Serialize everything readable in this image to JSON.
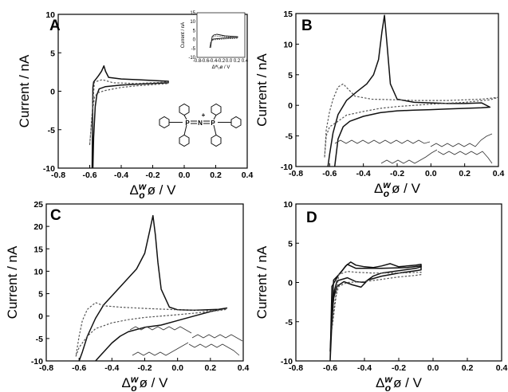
{
  "figure": {
    "ylabel": "Current / nA",
    "xlabel_main": "Δ",
    "xlabel_super": "w",
    "xlabel_sub": "o",
    "xlabel_tail": "ø / V",
    "solid_color": "#111111",
    "dotted_color": "#555555"
  },
  "inset": {
    "ylabel": "Current / nA",
    "xlabel": "Δᵂₒø / V",
    "xticks": [
      "-0.8",
      "-0.6",
      "-0.4",
      "-0.2",
      "0.0",
      "0.2",
      "0.4"
    ],
    "yticks": [
      "15",
      "10",
      "5",
      "0",
      "-5",
      "-10"
    ]
  },
  "molecule": {
    "p_left": "P",
    "n": "N",
    "p_right": "P",
    "charge": "+"
  },
  "chart_data": [
    {
      "panel": "A",
      "type": "line",
      "xlim": [
        -0.8,
        0.4
      ],
      "ylim": [
        -10,
        10
      ],
      "xticks": [
        "-0.8",
        "-0.6",
        "-0.4",
        "-0.2",
        "0.0",
        "0.2",
        "0.4"
      ],
      "yticks": [
        "10",
        "5",
        "0",
        "-5",
        "-10"
      ],
      "series": [
        {
          "style": "solid",
          "points": [
            [
              -0.58,
              -10
            ],
            [
              -0.575,
              -6
            ],
            [
              -0.565,
              -2
            ],
            [
              -0.555,
              -0.5
            ],
            [
              -0.54,
              0.3
            ],
            [
              -0.5,
              0.6
            ],
            [
              -0.4,
              0.8
            ],
            [
              -0.3,
              0.9
            ],
            [
              -0.2,
              1.0
            ],
            [
              -0.1,
              1.1
            ],
            [
              -0.1,
              1.3
            ],
            [
              -0.2,
              1.4
            ],
            [
              -0.3,
              1.5
            ],
            [
              -0.4,
              1.6
            ],
            [
              -0.48,
              1.8
            ],
            [
              -0.5,
              2.6
            ],
            [
              -0.51,
              3.3
            ],
            [
              -0.525,
              2.6
            ],
            [
              -0.545,
              2.0
            ],
            [
              -0.56,
              1.6
            ],
            [
              -0.575,
              1.2
            ],
            [
              -0.58,
              0.5
            ],
            [
              -0.585,
              -10
            ]
          ]
        },
        {
          "style": "dotted",
          "points": [
            [
              -0.6,
              -7
            ],
            [
              -0.585,
              -3
            ],
            [
              -0.57,
              -0.8
            ],
            [
              -0.55,
              -0.2
            ],
            [
              -0.5,
              0.1
            ],
            [
              -0.4,
              0.5
            ],
            [
              -0.3,
              0.7
            ],
            [
              -0.2,
              0.85
            ],
            [
              -0.1,
              1.0
            ],
            [
              -0.1,
              1.2
            ],
            [
              -0.3,
              1.0
            ],
            [
              -0.45,
              1.1
            ],
            [
              -0.52,
              1.5
            ],
            [
              -0.57,
              1.2
            ],
            [
              -0.6,
              -7
            ]
          ]
        }
      ]
    },
    {
      "panel": "B",
      "type": "line",
      "xlim": [
        -0.8,
        0.4
      ],
      "ylim": [
        -10,
        15
      ],
      "xticks": [
        "-0.8",
        "-0.6",
        "-0.4",
        "-0.2",
        "0.0",
        "0.2",
        "0.4"
      ],
      "yticks": [
        "15",
        "10",
        "5",
        "0",
        "-5",
        "-10"
      ],
      "series": [
        {
          "style": "solid",
          "points": [
            [
              -0.57,
              -10
            ],
            [
              -0.55,
              -5.5
            ],
            [
              -0.52,
              -3.5
            ],
            [
              -0.48,
              -2.6
            ],
            [
              -0.4,
              -1.8
            ],
            [
              -0.3,
              -1.2
            ],
            [
              -0.2,
              -0.9
            ],
            [
              -0.1,
              -0.8
            ],
            [
              0.0,
              -0.7
            ],
            [
              0.1,
              -0.6
            ],
            [
              0.2,
              -0.5
            ],
            [
              0.3,
              -0.4
            ],
            [
              0.35,
              -0.3
            ],
            [
              0.3,
              0.4
            ],
            [
              0.2,
              0.3
            ],
            [
              0.1,
              0.3
            ],
            [
              0.0,
              0.4
            ],
            [
              -0.1,
              0.5
            ],
            [
              -0.2,
              1.0
            ],
            [
              -0.24,
              3.5
            ],
            [
              -0.26,
              10.0
            ],
            [
              -0.275,
              14.7
            ],
            [
              -0.29,
              12.0
            ],
            [
              -0.31,
              7.5
            ],
            [
              -0.34,
              5.0
            ],
            [
              -0.38,
              3.5
            ],
            [
              -0.44,
              2.2
            ],
            [
              -0.5,
              0.8
            ],
            [
              -0.55,
              -1.5
            ],
            [
              -0.58,
              -4.5
            ],
            [
              -0.6,
              -8.0
            ],
            [
              -0.61,
              -10
            ]
          ]
        },
        {
          "style": "dotted",
          "points": [
            [
              -0.63,
              -8.5
            ],
            [
              -0.62,
              -5.0
            ],
            [
              -0.6,
              -3.5
            ],
            [
              -0.56,
              -2.8
            ],
            [
              -0.5,
              -1.6
            ],
            [
              -0.4,
              -1.0
            ],
            [
              -0.3,
              -0.5
            ],
            [
              -0.2,
              -0.2
            ],
            [
              0.0,
              0.2
            ],
            [
              0.2,
              0.5
            ],
            [
              0.35,
              0.9
            ],
            [
              0.4,
              1.3
            ],
            [
              0.3,
              1.0
            ],
            [
              0.1,
              0.8
            ],
            [
              -0.1,
              0.8
            ],
            [
              -0.2,
              0.9
            ],
            [
              -0.35,
              1.0
            ],
            [
              -0.45,
              1.5
            ],
            [
              -0.52,
              3.5
            ],
            [
              -0.55,
              3.0
            ],
            [
              -0.58,
              1.0
            ],
            [
              -0.6,
              -1.0
            ],
            [
              -0.62,
              -4.0
            ],
            [
              -0.63,
              -8.5
            ]
          ]
        }
      ]
    },
    {
      "panel": "C",
      "type": "line",
      "xlim": [
        -0.8,
        0.4
      ],
      "ylim": [
        -10,
        25
      ],
      "xticks": [
        "-0.8",
        "-0.6",
        "-0.4",
        "-0.2",
        "0.0",
        "0.2",
        "0.4"
      ],
      "yticks": [
        "25",
        "20",
        "15",
        "10",
        "5",
        "0",
        "-5",
        "-10"
      ],
      "series": [
        {
          "style": "solid",
          "points": [
            [
              -0.5,
              -10
            ],
            [
              -0.45,
              -8.0
            ],
            [
              -0.4,
              -6.0
            ],
            [
              -0.35,
              -4.5
            ],
            [
              -0.3,
              -3.5
            ],
            [
              -0.2,
              -2.5
            ],
            [
              -0.1,
              -2.0
            ],
            [
              0.0,
              -1.0
            ],
            [
              0.1,
              0.0
            ],
            [
              0.2,
              1.0
            ],
            [
              0.3,
              1.8
            ],
            [
              0.25,
              1.5
            ],
            [
              0.1,
              1.3
            ],
            [
              0.0,
              1.4
            ],
            [
              -0.05,
              2.0
            ],
            [
              -0.1,
              6.0
            ],
            [
              -0.12,
              12.0
            ],
            [
              -0.135,
              18.0
            ],
            [
              -0.15,
              22.4
            ],
            [
              -0.17,
              19.0
            ],
            [
              -0.2,
              14.0
            ],
            [
              -0.25,
              10.5
            ],
            [
              -0.3,
              8.5
            ],
            [
              -0.35,
              6.5
            ],
            [
              -0.4,
              4.5
            ],
            [
              -0.45,
              2.5
            ],
            [
              -0.5,
              -0.5
            ],
            [
              -0.55,
              -4.5
            ],
            [
              -0.58,
              -8.0
            ],
            [
              -0.6,
              -10
            ]
          ]
        },
        {
          "style": "dotted",
          "points": [
            [
              -0.62,
              -9.0
            ],
            [
              -0.6,
              -7.0
            ],
            [
              -0.55,
              -4.5
            ],
            [
              -0.5,
              -2.8
            ],
            [
              -0.4,
              -1.5
            ],
            [
              -0.3,
              -0.8
            ],
            [
              -0.2,
              -0.3
            ],
            [
              0.0,
              0.3
            ],
            [
              0.2,
              1.0
            ],
            [
              0.3,
              1.5
            ],
            [
              0.2,
              1.2
            ],
            [
              0.0,
              1.4
            ],
            [
              -0.2,
              1.7
            ],
            [
              -0.35,
              2.0
            ],
            [
              -0.45,
              2.3
            ],
            [
              -0.5,
              3.0
            ],
            [
              -0.55,
              1.5
            ],
            [
              -0.58,
              -1.0
            ],
            [
              -0.6,
              -4.5
            ],
            [
              -0.62,
              -9.0
            ]
          ]
        }
      ]
    },
    {
      "panel": "D",
      "type": "line",
      "xlim": [
        -0.8,
        0.4
      ],
      "ylim": [
        -10,
        10
      ],
      "xticks": [
        "-0.8",
        "-0.6",
        "-0.4",
        "-0.2",
        "0.0",
        "0.2",
        "0.4"
      ],
      "yticks": [
        "10",
        "5",
        "0",
        "-5",
        "-10"
      ],
      "series": [
        {
          "style": "solid",
          "points": [
            [
              -0.6,
              -8.8
            ],
            [
              -0.59,
              -4.0
            ],
            [
              -0.575,
              -1.0
            ],
            [
              -0.56,
              0.2
            ],
            [
              -0.5,
              0.6
            ],
            [
              -0.45,
              0.1
            ],
            [
              -0.4,
              0.0
            ],
            [
              -0.35,
              0.8
            ],
            [
              -0.3,
              1.2
            ],
            [
              -0.2,
              1.5
            ],
            [
              -0.1,
              1.8
            ],
            [
              -0.07,
              2.0
            ],
            [
              -0.07,
              2.3
            ],
            [
              -0.1,
              2.2
            ],
            [
              -0.2,
              2.0
            ],
            [
              -0.25,
              2.4
            ],
            [
              -0.3,
              2.1
            ],
            [
              -0.35,
              1.9
            ],
            [
              -0.4,
              2.0
            ],
            [
              -0.45,
              2.2
            ],
            [
              -0.48,
              2.6
            ],
            [
              -0.51,
              2.1
            ],
            [
              -0.54,
              1.2
            ],
            [
              -0.58,
              0.3
            ],
            [
              -0.6,
              -8.8
            ]
          ]
        },
        {
          "style": "solid",
          "points": [
            [
              -0.6,
              -10
            ],
            [
              -0.59,
              -5.0
            ],
            [
              -0.58,
              -2.0
            ],
            [
              -0.56,
              -0.5
            ],
            [
              -0.52,
              0.1
            ],
            [
              -0.47,
              -0.3
            ],
            [
              -0.42,
              -0.6
            ],
            [
              -0.38,
              0.3
            ],
            [
              -0.3,
              0.8
            ],
            [
              -0.2,
              1.2
            ],
            [
              -0.1,
              1.5
            ],
            [
              -0.07,
              1.6
            ],
            [
              -0.07,
              2.1
            ],
            [
              -0.15,
              1.9
            ],
            [
              -0.3,
              1.8
            ],
            [
              -0.45,
              1.8
            ],
            [
              -0.5,
              2.3
            ],
            [
              -0.55,
              1.0
            ],
            [
              -0.59,
              -0.5
            ],
            [
              -0.6,
              -10
            ]
          ]
        },
        {
          "style": "dotted",
          "points": [
            [
              -0.59,
              -6.0
            ],
            [
              -0.57,
              -2.0
            ],
            [
              -0.55,
              -0.5
            ],
            [
              -0.5,
              0.0
            ],
            [
              -0.4,
              0.1
            ],
            [
              -0.3,
              0.4
            ],
            [
              -0.2,
              0.7
            ],
            [
              -0.1,
              0.9
            ],
            [
              -0.07,
              1.0
            ],
            [
              -0.07,
              1.3
            ],
            [
              -0.2,
              1.2
            ],
            [
              -0.35,
              1.2
            ],
            [
              -0.45,
              1.3
            ],
            [
              -0.5,
              1.4
            ],
            [
              -0.55,
              1.0
            ],
            [
              -0.59,
              -6.0
            ]
          ]
        }
      ]
    }
  ]
}
